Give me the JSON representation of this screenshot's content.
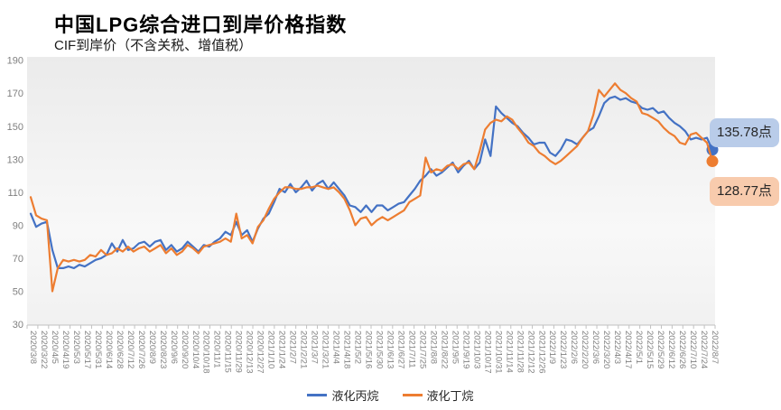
{
  "title": "中国LPG综合进口到岸价格指数",
  "subtitle": "CIF到岸价（不含关税、增值税）",
  "chart_data": {
    "type": "line",
    "title": "中国LPG综合进口到岸价格指数",
    "subtitle": "CIF到岸价（不含关税、增值税）",
    "ylim": [
      30,
      190
    ],
    "y_ticks": [
      190,
      170,
      150,
      130,
      110,
      90,
      70,
      50,
      30
    ],
    "grid": false,
    "legend_position": "bottom",
    "x_points_per_label": 2,
    "x_tick_labels": [
      "2020/3/8",
      "2020/3/22",
      "2020/4/5",
      "2020/4/19",
      "2020/5/3",
      "2020/5/17",
      "2020/5/31",
      "2020/6/14",
      "2020/6/28",
      "2020/7/12",
      "2020/7/26",
      "2020/8/9",
      "2020/8/23",
      "2020/9/6",
      "2020/9/20",
      "2020/10/4",
      "2020/10/18",
      "2020/11/1",
      "2020/11/15",
      "2020/11/29",
      "2020/12/13",
      "2020/12/27",
      "2021/1/10",
      "2021/1/24",
      "2021/2/7",
      "2021/2/21",
      "2021/3/7",
      "2021/3/21",
      "2021/4/4",
      "2021/4/18",
      "2021/5/2",
      "2021/5/16",
      "2021/5/30",
      "2021/6/13",
      "2021/6/27",
      "2021/7/11",
      "2021/7/25",
      "2021/8/8",
      "2021/8/22",
      "2021/9/5",
      "2021/9/19",
      "2021/10/3",
      "2021/10/17",
      "2021/10/31",
      "2021/11/14",
      "2021/11/28",
      "2021/12/12",
      "2021/12/26",
      "2022/1/9",
      "2022/1/23",
      "2022/2/6",
      "2022/2/20",
      "2022/3/6",
      "2022/3/20",
      "2022/4/3",
      "2022/4/17",
      "2022/5/1",
      "2022/5/15",
      "2022/5/29",
      "2022/6/12",
      "2022/6/26",
      "2022/7/10",
      "2022/7/24",
      "2022/8/7"
    ],
    "series": [
      {
        "name": "液化丙烷",
        "color": "#4472C4",
        "end_label": "135.78点",
        "end_label_bg": "#B9CCE9",
        "end_value": 135.78,
        "values": [
          97,
          89,
          91,
          92,
          75,
          64,
          64,
          65,
          64,
          66,
          65,
          67,
          69,
          70,
          72,
          79,
          74,
          81,
          75,
          76,
          79,
          80,
          77,
          80,
          81,
          75,
          78,
          74,
          76,
          80,
          77,
          74,
          78,
          77,
          80,
          82,
          86,
          84,
          92,
          84,
          87,
          80,
          88,
          94,
          97,
          104,
          112,
          110,
          115,
          110,
          113,
          117,
          111,
          115,
          117,
          112,
          116,
          112,
          108,
          102,
          101,
          98,
          102,
          98,
          102,
          102,
          99,
          101,
          103,
          104,
          108,
          112,
          117,
          120,
          124,
          120,
          122,
          125,
          128,
          122,
          126,
          129,
          124,
          128,
          142,
          132,
          162,
          158,
          155,
          152,
          150,
          146,
          143,
          139,
          140,
          140,
          134,
          132,
          136,
          142,
          141,
          139,
          143,
          147,
          149,
          156,
          164,
          167,
          168,
          166,
          167,
          165,
          164,
          161,
          160,
          161,
          158,
          159,
          155,
          152,
          150,
          147,
          142,
          143,
          142,
          143,
          135.78
        ]
      },
      {
        "name": "液化丁烷",
        "color": "#ED7D31",
        "end_label": "128.77点",
        "end_label_bg": "#F8CBAD",
        "end_value": 128.77,
        "values": [
          107,
          96,
          94,
          93,
          50,
          64,
          69,
          68,
          69,
          68,
          69,
          72,
          71,
          75,
          72,
          73,
          76,
          74,
          77,
          74,
          76,
          77,
          74,
          76,
          78,
          73,
          76,
          72,
          74,
          78,
          76,
          73,
          77,
          78,
          79,
          80,
          82,
          80,
          97,
          82,
          84,
          79,
          89,
          93,
          100,
          106,
          110,
          113,
          113,
          112,
          112,
          113,
          113,
          114,
          113,
          112,
          113,
          110,
          106,
          99,
          90,
          94,
          95,
          90,
          93,
          95,
          93,
          95,
          97,
          99,
          104,
          106,
          108,
          131,
          122,
          124,
          123,
          126,
          127,
          124,
          127,
          128,
          124,
          135,
          148,
          152,
          154,
          153,
          156,
          154,
          149,
          145,
          140,
          138,
          134,
          132,
          129,
          127,
          129,
          132,
          135,
          138,
          143,
          147,
          157,
          172,
          168,
          172,
          176,
          172,
          170,
          167,
          165,
          158,
          157,
          155,
          153,
          149,
          146,
          144,
          140,
          139,
          145,
          146,
          143,
          140,
          128.77
        ]
      }
    ]
  },
  "axis_colors": {
    "tick_text": "#7F7F7F",
    "axis_line": "#C0C0C0"
  }
}
